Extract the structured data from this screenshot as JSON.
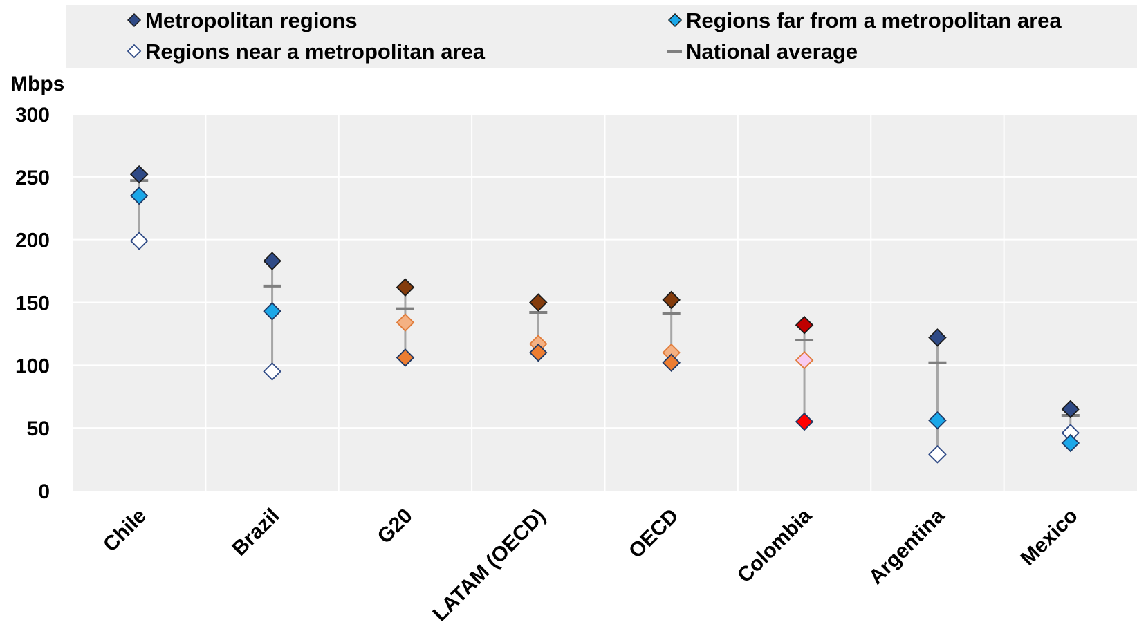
{
  "chart_data": {
    "type": "scatter",
    "ylabel": "Mbps",
    "ylim": [
      0,
      300
    ],
    "yticks": [
      0,
      50,
      100,
      150,
      200,
      250,
      300
    ],
    "grid": true,
    "legend_position": "top",
    "categories": [
      "Chile",
      "Brazil",
      "G20",
      "LATAM (OECD)",
      "OECD",
      "Colombia",
      "Argentina",
      "Mexico"
    ],
    "legend": [
      {
        "name": "Metropolitan regions",
        "symbol": "diamond-filled",
        "color": "#2F4A86"
      },
      {
        "name": "Regions far from a metropolitan area",
        "symbol": "diamond-filled",
        "color": "#1BA7E8"
      },
      {
        "name": "Regions near a metropolitan area",
        "symbol": "diamond-open",
        "color": "#2F4A86"
      },
      {
        "name": "National average",
        "symbol": "dash",
        "color": "#7F7F7F"
      }
    ],
    "series": [
      {
        "name": "Metropolitan regions",
        "values": [
          252,
          183,
          162,
          150,
          152,
          132,
          122,
          65
        ]
      },
      {
        "name": "Regions far from a metropolitan area",
        "values": [
          235,
          143,
          106,
          110,
          102,
          55,
          56,
          38
        ]
      },
      {
        "name": "Regions near a metropolitan area",
        "values": [
          199,
          95,
          134,
          117,
          110,
          104,
          29,
          46
        ]
      },
      {
        "name": "National average",
        "values": [
          247,
          163,
          145,
          142,
          141,
          120,
          102,
          60
        ]
      }
    ],
    "point_colors": {
      "Metropolitan regions": [
        "#2F4A86",
        "#2F4A86",
        "#843C0C",
        "#843C0C",
        "#843C0C",
        "#C00000",
        "#2F4A86",
        "#2F4A86"
      ],
      "Regions far from a metropolitan area": [
        "#1BA7E8",
        "#1BA7E8",
        "#ED7D31",
        "#ED7D31",
        "#ED7D31",
        "#FF0000",
        "#1BA7E8",
        "#1BA7E8"
      ],
      "Regions near a metropolitan area": [
        "#FFFFFF",
        "#FFFFFF",
        "#F4B183",
        "#F4B183",
        "#F4B183",
        "#F8CBF0",
        "#FFFFFF",
        "#FFFFFF"
      ]
    }
  }
}
